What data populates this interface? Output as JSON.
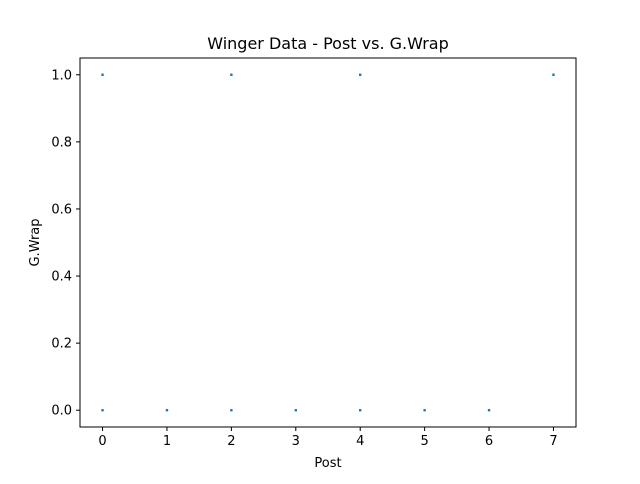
{
  "chart_data": {
    "type": "scatter",
    "title": "Winger Data - Post vs. G.Wrap",
    "xlabel": "Post",
    "ylabel": "G.Wrap",
    "xlim": [
      -0.35,
      7.35
    ],
    "ylim": [
      -0.05,
      1.05
    ],
    "xticks": [
      0,
      1,
      2,
      3,
      4,
      5,
      6,
      7
    ],
    "xtick_labels": [
      "0",
      "1",
      "2",
      "3",
      "4",
      "5",
      "6",
      "7"
    ],
    "yticks": [
      0.0,
      0.2,
      0.4,
      0.6,
      0.8,
      1.0
    ],
    "ytick_labels": [
      "0.0",
      "0.2",
      "0.4",
      "0.6",
      "0.8",
      "1.0"
    ],
    "grid": false,
    "marker_color": "#1f77b4",
    "points": [
      {
        "x": 0,
        "y": 1
      },
      {
        "x": 2,
        "y": 1
      },
      {
        "x": 4,
        "y": 1
      },
      {
        "x": 7,
        "y": 1
      },
      {
        "x": 0,
        "y": 0
      },
      {
        "x": 1,
        "y": 0
      },
      {
        "x": 2,
        "y": 0
      },
      {
        "x": 3,
        "y": 0
      },
      {
        "x": 4,
        "y": 0
      },
      {
        "x": 5,
        "y": 0
      },
      {
        "x": 6,
        "y": 0
      }
    ]
  }
}
